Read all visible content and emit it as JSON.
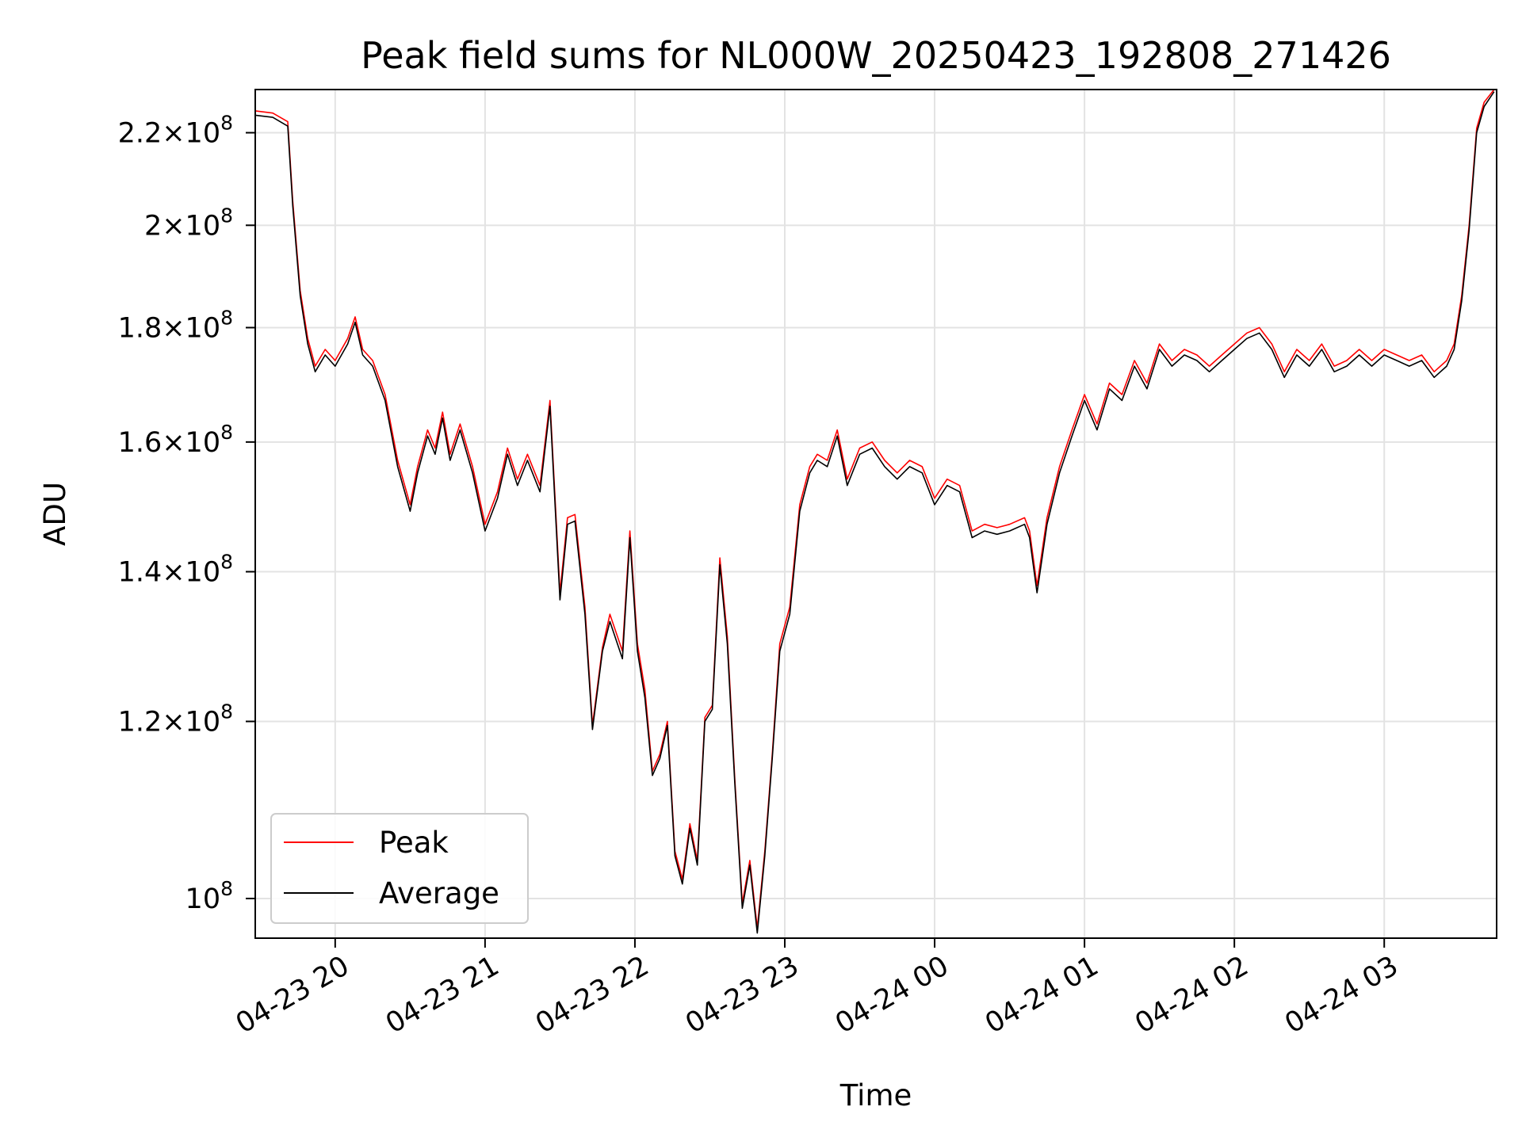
{
  "chart_data": {
    "type": "line",
    "title": "Peak field sums for NL000W_20250423_192808_271426",
    "xlabel": "Time",
    "ylabel": "ADU",
    "yscale": "log",
    "grid": true,
    "legend_position": "lower-left",
    "xlim": [
      "2025-04-23 19:28",
      "2025-04-24 03:45"
    ],
    "ylim": [
      96000000,
      230000000
    ],
    "x_ticks": [
      {
        "value": "2025-04-23 20:00",
        "label": "04-23 20"
      },
      {
        "value": "2025-04-23 21:00",
        "label": "04-23 21"
      },
      {
        "value": "2025-04-23 22:00",
        "label": "04-23 22"
      },
      {
        "value": "2025-04-23 23:00",
        "label": "04-23 23"
      },
      {
        "value": "2025-04-24 00:00",
        "label": "04-24 00"
      },
      {
        "value": "2025-04-24 01:00",
        "label": "04-24 01"
      },
      {
        "value": "2025-04-24 02:00",
        "label": "04-24 02"
      },
      {
        "value": "2025-04-24 03:00",
        "label": "04-24 03"
      }
    ],
    "y_ticks": [
      {
        "value": 100000000,
        "mantissa": "",
        "exponent": "8"
      },
      {
        "value": 120000000,
        "mantissa": "1.2",
        "exponent": "8"
      },
      {
        "value": 140000000,
        "mantissa": "1.4",
        "exponent": "8"
      },
      {
        "value": 160000000,
        "mantissa": "1.6",
        "exponent": "8"
      },
      {
        "value": 180000000,
        "mantissa": "1.8",
        "exponent": "8"
      },
      {
        "value": 200000000,
        "mantissa": "2",
        "exponent": "8"
      },
      {
        "value": 220000000,
        "mantissa": "2.2",
        "exponent": "8"
      }
    ],
    "x": [
      "2025-04-23 19:28",
      "2025-04-23 19:35",
      "2025-04-23 19:41",
      "2025-04-23 19:43",
      "2025-04-23 19:46",
      "2025-04-23 19:49",
      "2025-04-23 19:52",
      "2025-04-23 19:56",
      "2025-04-23 20:00",
      "2025-04-23 20:05",
      "2025-04-23 20:08",
      "2025-04-23 20:11",
      "2025-04-23 20:15",
      "2025-04-23 20:20",
      "2025-04-23 20:25",
      "2025-04-23 20:30",
      "2025-04-23 20:33",
      "2025-04-23 20:37",
      "2025-04-23 20:40",
      "2025-04-23 20:43",
      "2025-04-23 20:46",
      "2025-04-23 20:50",
      "2025-04-23 20:55",
      "2025-04-23 21:00",
      "2025-04-23 21:05",
      "2025-04-23 21:09",
      "2025-04-23 21:13",
      "2025-04-23 21:17",
      "2025-04-23 21:22",
      "2025-04-23 21:26",
      "2025-04-23 21:30",
      "2025-04-23 21:33",
      "2025-04-23 21:36",
      "2025-04-23 21:40",
      "2025-04-23 21:43",
      "2025-04-23 21:47",
      "2025-04-23 21:50",
      "2025-04-23 21:55",
      "2025-04-23 21:58",
      "2025-04-23 22:01",
      "2025-04-23 22:04",
      "2025-04-23 22:07",
      "2025-04-23 22:10",
      "2025-04-23 22:13",
      "2025-04-23 22:16",
      "2025-04-23 22:19",
      "2025-04-23 22:22",
      "2025-04-23 22:25",
      "2025-04-23 22:28",
      "2025-04-23 22:31",
      "2025-04-23 22:34",
      "2025-04-23 22:37",
      "2025-04-23 22:40",
      "2025-04-23 22:43",
      "2025-04-23 22:46",
      "2025-04-23 22:49",
      "2025-04-23 22:52",
      "2025-04-23 22:55",
      "2025-04-23 22:58",
      "2025-04-23 23:02",
      "2025-04-23 23:06",
      "2025-04-23 23:10",
      "2025-04-23 23:13",
      "2025-04-23 23:17",
      "2025-04-23 23:21",
      "2025-04-23 23:25",
      "2025-04-23 23:30",
      "2025-04-23 23:35",
      "2025-04-23 23:40",
      "2025-04-23 23:45",
      "2025-04-23 23:50",
      "2025-04-23 23:55",
      "2025-04-24 00:00",
      "2025-04-24 00:05",
      "2025-04-24 00:10",
      "2025-04-24 00:15",
      "2025-04-24 00:20",
      "2025-04-24 00:25",
      "2025-04-24 00:30",
      "2025-04-24 00:36",
      "2025-04-24 00:38",
      "2025-04-24 00:41",
      "2025-04-24 00:45",
      "2025-04-24 00:50",
      "2025-04-24 00:55",
      "2025-04-24 01:00",
      "2025-04-24 01:05",
      "2025-04-24 01:10",
      "2025-04-24 01:15",
      "2025-04-24 01:20",
      "2025-04-24 01:25",
      "2025-04-24 01:30",
      "2025-04-24 01:35",
      "2025-04-24 01:40",
      "2025-04-24 01:45",
      "2025-04-24 01:50",
      "2025-04-24 01:55",
      "2025-04-24 02:00",
      "2025-04-24 02:05",
      "2025-04-24 02:10",
      "2025-04-24 02:15",
      "2025-04-24 02:20",
      "2025-04-24 02:25",
      "2025-04-24 02:30",
      "2025-04-24 02:35",
      "2025-04-24 02:40",
      "2025-04-24 02:45",
      "2025-04-24 02:50",
      "2025-04-24 02:55",
      "2025-04-24 03:00",
      "2025-04-24 03:05",
      "2025-04-24 03:10",
      "2025-04-24 03:15",
      "2025-04-24 03:20",
      "2025-04-24 03:25",
      "2025-04-24 03:28",
      "2025-04-24 03:31",
      "2025-04-24 03:34",
      "2025-04-24 03:37",
      "2025-04-24 03:40",
      "2025-04-24 03:44"
    ],
    "series": [
      {
        "name": "Peak",
        "color": "#ff0000",
        "values": [
          225000000,
          224500000,
          222500000,
          205000000,
          187000000,
          178000000,
          173000000,
          176000000,
          174000000,
          178000000,
          182000000,
          176000000,
          174000000,
          168000000,
          157000000,
          150000000,
          156000000,
          162000000,
          159000000,
          165000000,
          158000000,
          163000000,
          156000000,
          147000000,
          152000000,
          159000000,
          154000000,
          158000000,
          153000000,
          167000000,
          137000000,
          148000000,
          148500000,
          135000000,
          119500000,
          129500000,
          134000000,
          129000000,
          146000000,
          130000000,
          124000000,
          114000000,
          116000000,
          120000000,
          105000000,
          102000000,
          108000000,
          104000000,
          120500000,
          122000000,
          142000000,
          131000000,
          113000000,
          99500000,
          104000000,
          97000000,
          105000000,
          116000000,
          130000000,
          135000000,
          150000000,
          156000000,
          158000000,
          157000000,
          162000000,
          154000000,
          159000000,
          160000000,
          157000000,
          155000000,
          157000000,
          156000000,
          151000000,
          154000000,
          153000000,
          146000000,
          147000000,
          146500000,
          147000000,
          148000000,
          146000000,
          138000000,
          148000000,
          156000000,
          162000000,
          168000000,
          163000000,
          170000000,
          168000000,
          174000000,
          170000000,
          177000000,
          174000000,
          176000000,
          175000000,
          173000000,
          175000000,
          177000000,
          179000000,
          180000000,
          177000000,
          172000000,
          176000000,
          174000000,
          177000000,
          173000000,
          174000000,
          176000000,
          174000000,
          176000000,
          175000000,
          174000000,
          175000000,
          172000000,
          174000000,
          177000000,
          186000000,
          200000000,
          221000000,
          227000000,
          230000000
        ]
      },
      {
        "name": "Average",
        "color": "#000000",
        "values": [
          224000000,
          223500000,
          221500000,
          204000000,
          186000000,
          177000000,
          172000000,
          175000000,
          173000000,
          177000000,
          181000000,
          175000000,
          173000000,
          167000000,
          156000000,
          149000000,
          155000000,
          161000000,
          158000000,
          164000000,
          157000000,
          162000000,
          155000000,
          146000000,
          151000000,
          158000000,
          153000000,
          157000000,
          152000000,
          166000000,
          136000000,
          147000000,
          147500000,
          134000000,
          119000000,
          129000000,
          133000000,
          128000000,
          145000000,
          129000000,
          123000000,
          113500000,
          115500000,
          119500000,
          104500000,
          101500000,
          107500000,
          103500000,
          120000000,
          121500000,
          141000000,
          130000000,
          112500000,
          99000000,
          103500000,
          96500000,
          104500000,
          115500000,
          129000000,
          134000000,
          149000000,
          155000000,
          157000000,
          156000000,
          161000000,
          153000000,
          158000000,
          159000000,
          156000000,
          154000000,
          156000000,
          155000000,
          150000000,
          153000000,
          152000000,
          145000000,
          146000000,
          145500000,
          146000000,
          147000000,
          145000000,
          137000000,
          147000000,
          155000000,
          161000000,
          167000000,
          162000000,
          169000000,
          167000000,
          173000000,
          169000000,
          176000000,
          173000000,
          175000000,
          174000000,
          172000000,
          174000000,
          176000000,
          178000000,
          179000000,
          176000000,
          171000000,
          175000000,
          173000000,
          176000000,
          172000000,
          173000000,
          175000000,
          173000000,
          175000000,
          174000000,
          173000000,
          174000000,
          171000000,
          173000000,
          176000000,
          185000000,
          199000000,
          220000000,
          226000000,
          229500000
        ]
      }
    ]
  }
}
